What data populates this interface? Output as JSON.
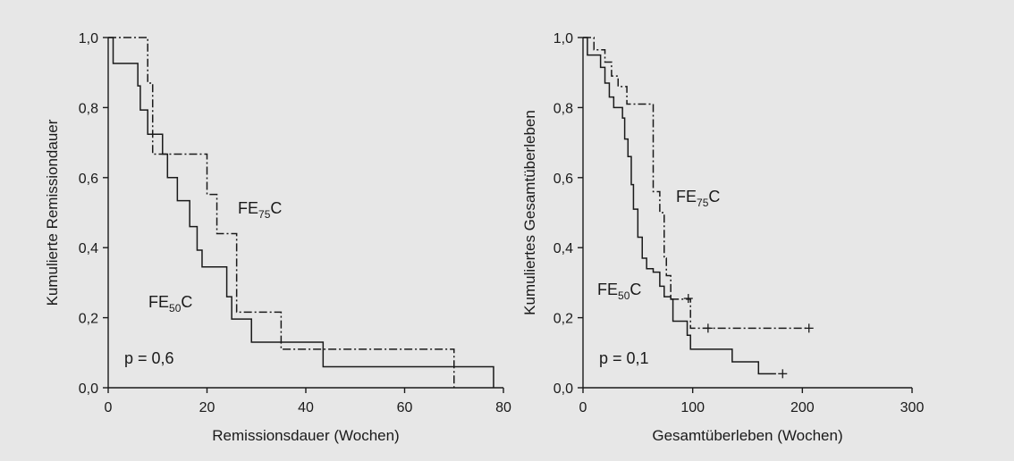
{
  "chart_data": [
    {
      "type": "line",
      "xlabel": "Remissionsdauer (Wochen)",
      "ylabel": "Kumulierte Remissiondauer",
      "xlim": [
        0,
        80
      ],
      "ylim": [
        0,
        1
      ],
      "xticks": [
        "0",
        "20",
        "40",
        "60",
        "80"
      ],
      "yticks": [
        "0,0",
        "0,2",
        "0,4",
        "0,6",
        "0,8",
        "1,0"
      ],
      "annotation": "p = 0,6",
      "series": [
        {
          "name": "FE50C",
          "label_main": "FE",
          "label_sub": "50",
          "label_end": "C",
          "line_style": "solid",
          "steps": [
            [
              1,
              0.926
            ],
            [
              6,
              0.862
            ],
            [
              6.5,
              0.793
            ],
            [
              8,
              0.724
            ],
            [
              11,
              0.667
            ],
            [
              12,
              0.6
            ],
            [
              14,
              0.534
            ],
            [
              16.5,
              0.46
            ],
            [
              18,
              0.393
            ],
            [
              19,
              0.345
            ],
            [
              24,
              0.26
            ],
            [
              25,
              0.196
            ],
            [
              29,
              0.13
            ],
            [
              43.5,
              0.06
            ],
            [
              78,
              0
            ]
          ],
          "censored": []
        },
        {
          "name": "FE75C",
          "label_main": "FE",
          "label_sub": "75",
          "label_end": "C",
          "line_style": "dashdot",
          "steps": [
            [
              1,
              1.0
            ],
            [
              8,
              0.87
            ],
            [
              9,
              0.667
            ],
            [
              20,
              0.552
            ],
            [
              22,
              0.44
            ],
            [
              26,
              0.216
            ],
            [
              35,
              0.11
            ],
            [
              70,
              0
            ]
          ],
          "censored": []
        }
      ]
    },
    {
      "type": "line",
      "xlabel": "Gesamtüberleben (Wochen)",
      "ylabel": "Kumuliertes Gesamtüberleben",
      "xlim": [
        0,
        300
      ],
      "ylim": [
        0,
        1
      ],
      "xticks": [
        "0",
        "100",
        "200",
        "300"
      ],
      "yticks": [
        "0,0",
        "0,2",
        "0,4",
        "0,6",
        "0,8",
        "1,0"
      ],
      "annotation": "p = 0,1",
      "series": [
        {
          "name": "FE50C",
          "label_main": "FE",
          "label_sub": "50",
          "label_end": "C",
          "line_style": "solid",
          "steps": [
            [
              4,
              0.95
            ],
            [
              16,
              0.915
            ],
            [
              20,
              0.87
            ],
            [
              24,
              0.83
            ],
            [
              28,
              0.8
            ],
            [
              36,
              0.77
            ],
            [
              38,
              0.71
            ],
            [
              41,
              0.66
            ],
            [
              44,
              0.58
            ],
            [
              46,
              0.51
            ],
            [
              50,
              0.43
            ],
            [
              54,
              0.37
            ],
            [
              58,
              0.34
            ],
            [
              64,
              0.33
            ],
            [
              70,
              0.29
            ],
            [
              74,
              0.26
            ],
            [
              80,
              0.253
            ],
            [
              82,
              0.19
            ],
            [
              95,
              0.15
            ],
            [
              98,
              0.11
            ],
            [
              136,
              0.074
            ],
            [
              160,
              0.04
            ],
            [
              176,
              0.04
            ]
          ],
          "censored": [
            [
              182,
              0.04
            ]
          ]
        },
        {
          "name": "FE75C",
          "label_main": "FE",
          "label_sub": "75",
          "label_end": "C",
          "line_style": "dashdot",
          "steps": [
            [
              10,
              0.965
            ],
            [
              20,
              0.93
            ],
            [
              26,
              0.89
            ],
            [
              32,
              0.86
            ],
            [
              40,
              0.81
            ],
            [
              64,
              0.56
            ],
            [
              70,
              0.5
            ],
            [
              74,
              0.37
            ],
            [
              76,
              0.32
            ],
            [
              80,
              0.253
            ],
            [
              98,
              0.17
            ],
            [
              206,
              0.17
            ]
          ],
          "censored": [
            [
              96,
              0.255
            ],
            [
              114,
              0.17
            ],
            [
              206,
              0.17
            ]
          ]
        }
      ]
    }
  ]
}
